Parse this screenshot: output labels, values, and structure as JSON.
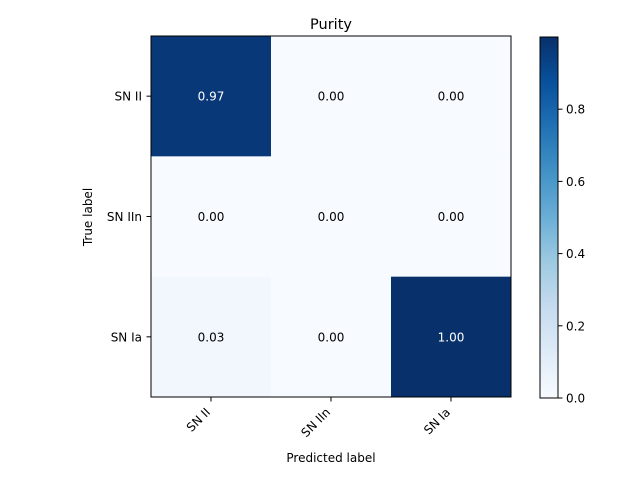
{
  "chart_data": {
    "type": "heatmap",
    "title": "Purity",
    "xlabel": "Predicted label",
    "ylabel": "True label",
    "x_categories": [
      "SN II",
      "SN IIn",
      "SN Ia"
    ],
    "y_categories": [
      "SN II",
      "SN IIn",
      "SN Ia"
    ],
    "values": [
      [
        0.97,
        0.0,
        0.0
      ],
      [
        0.0,
        0.0,
        0.0
      ],
      [
        0.03,
        0.0,
        1.0
      ]
    ],
    "value_labels": [
      [
        "0.97",
        "0.00",
        "0.00"
      ],
      [
        "0.00",
        "0.00",
        "0.00"
      ],
      [
        "0.03",
        "0.00",
        "1.00"
      ]
    ],
    "colormap": "Blues",
    "colorbar": {
      "range": [
        0,
        1.0
      ],
      "ticks": [
        0.0,
        0.2,
        0.4,
        0.6,
        0.8
      ],
      "tick_labels": [
        "0.0",
        "0.2",
        "0.4",
        "0.6",
        "0.8"
      ]
    },
    "text_color_dark": "#000000",
    "text_color_light": "#ffffff"
  }
}
